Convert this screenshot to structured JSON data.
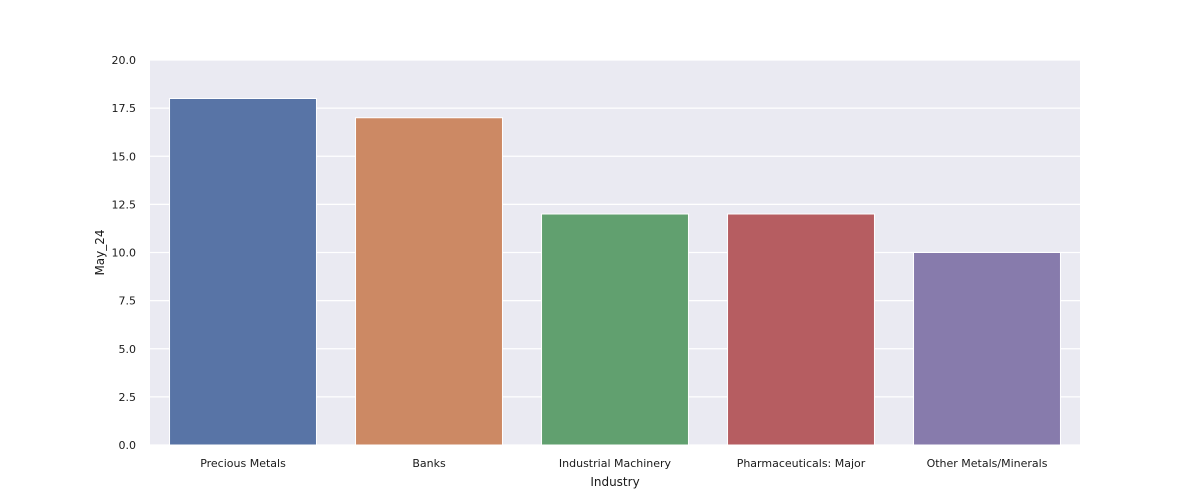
{
  "chart_data": {
    "type": "bar",
    "title": "",
    "xlabel": "Industry",
    "ylabel": "May_24",
    "categories": [
      "Precious Metals",
      "Banks",
      "Industrial Machinery",
      "Pharmaceuticals: Major",
      "Other Metals/Minerals"
    ],
    "values": [
      18,
      17,
      12,
      12,
      10
    ],
    "colors": [
      "#5874a6",
      "#cc8964",
      "#61a06f",
      "#b65d61",
      "#877bac"
    ],
    "ylim": [
      0,
      20
    ],
    "yticks": [
      "0.0",
      "2.5",
      "5.0",
      "7.5",
      "10.0",
      "12.5",
      "15.0",
      "17.5",
      "20.0"
    ],
    "grid": true,
    "legend": "none",
    "background": "#eaeaf2"
  }
}
